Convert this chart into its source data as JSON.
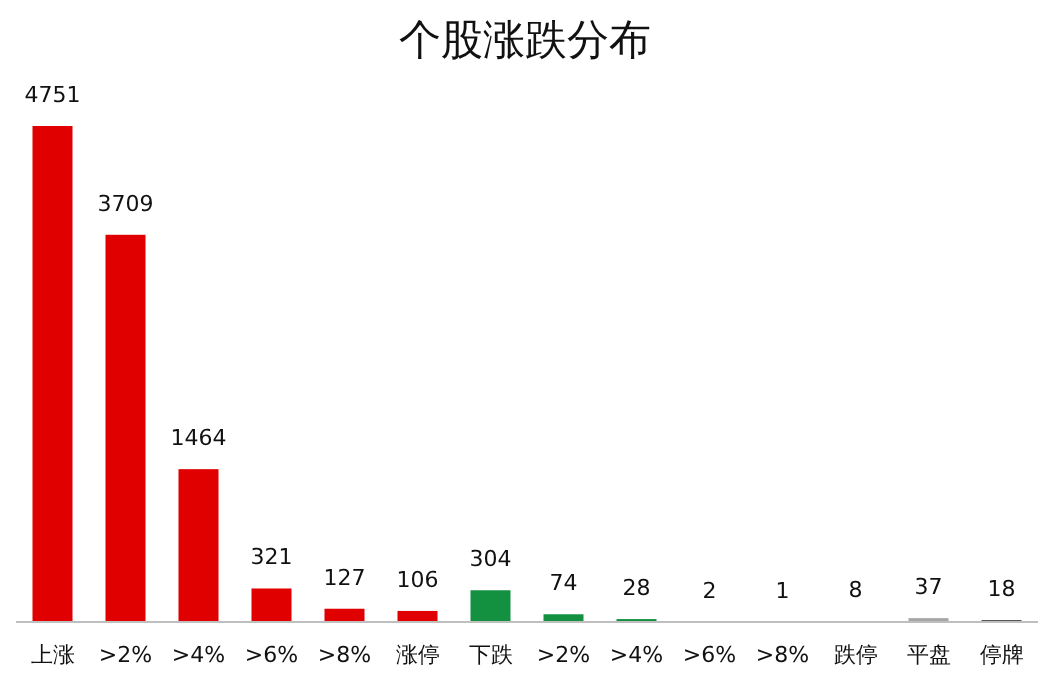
{
  "chart_data": {
    "type": "bar",
    "title": "个股涨跌分布",
    "categories": [
      "上涨",
      ">2%",
      ">4%",
      ">6%",
      ">8%",
      "涨停",
      "下跌",
      ">2%",
      ">4%",
      ">6%",
      ">8%",
      "跌停",
      "平盘",
      "停牌"
    ],
    "values": [
      4751,
      3709,
      1464,
      321,
      127,
      106,
      304,
      74,
      28,
      2,
      1,
      8,
      37,
      18
    ],
    "colors": [
      "#e00000",
      "#e00000",
      "#e00000",
      "#e00000",
      "#e00000",
      "#e00000",
      "#139040",
      "#139040",
      "#139040",
      "#139040",
      "#139040",
      "#139040",
      "#a6a6a6",
      "#404040"
    ],
    "data_labels": true
  }
}
